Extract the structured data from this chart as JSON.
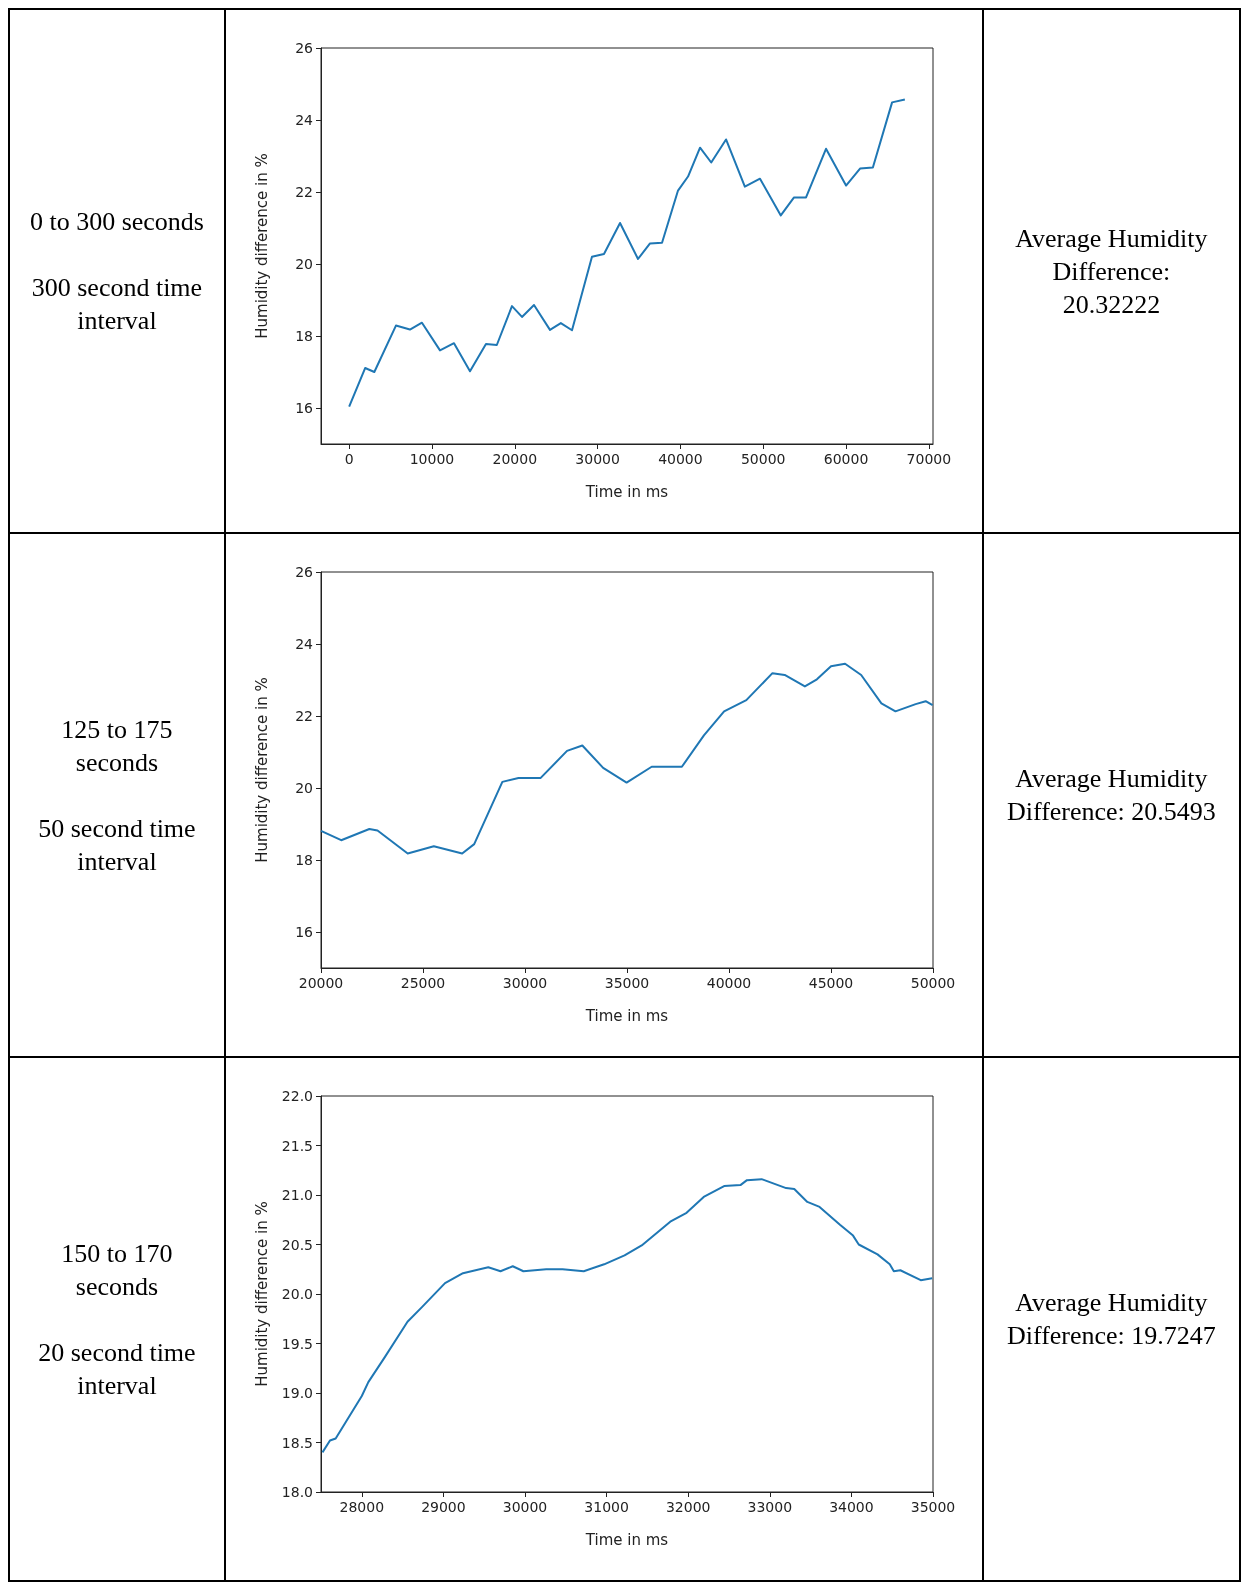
{
  "chart_data": [
    {
      "type": "line",
      "xlabel": "Time in ms",
      "ylabel": "Humidity difference in %",
      "annotations": [
        "0 to 300 seconds",
        "300 second time interval",
        "Average Humidity Difference: 20.32222"
      ],
      "xlim": [
        -3400,
        70500
      ],
      "ylim": [
        15,
        26
      ],
      "xticks": [
        0,
        10000,
        20000,
        30000,
        40000,
        50000,
        60000,
        70000
      ],
      "yticks": [
        16,
        18,
        20,
        22,
        24,
        26
      ],
      "x": [
        0,
        1930,
        3040,
        5650,
        7340,
        8790,
        10970,
        12660,
        14590,
        16520,
        17830,
        19660,
        20870,
        22320,
        24250,
        25560,
        26910,
        29320,
        30770,
        32710,
        34880,
        36330,
        37780,
        39710,
        40920,
        42370,
        43720,
        45510,
        47780,
        49610,
        52120,
        53720,
        55170,
        57580,
        60000,
        61690,
        63240,
        65560,
        67100
      ],
      "series": [
        {
          "color": "#1f77b4",
          "values": [
            16.04,
            17.11,
            17.0,
            18.29,
            18.18,
            18.37,
            17.6,
            17.8,
            17.02,
            17.78,
            17.75,
            18.83,
            18.53,
            18.86,
            18.17,
            18.36,
            18.16,
            20.2,
            20.28,
            21.14,
            20.14,
            20.57,
            20.59,
            22.04,
            22.43,
            23.23,
            22.82,
            23.46,
            22.15,
            22.37,
            21.35,
            21.85,
            21.85,
            23.2,
            22.18,
            22.65,
            22.68,
            24.49,
            24.57
          ]
        }
      ]
    },
    {
      "type": "line",
      "xlabel": "Time in ms",
      "ylabel": "Humidity difference in %",
      "annotations": [
        "125 to 175 seconds",
        "50 second time interval",
        "Average Humidity Difference: 20.5493"
      ],
      "xlim": [
        20000,
        50000
      ],
      "ylim": [
        15,
        26
      ],
      "xticks": [
        20000,
        25000,
        30000,
        35000,
        40000,
        45000,
        50000
      ],
      "yticks": [
        16,
        18,
        20,
        22,
        24,
        26
      ],
      "x": [
        20000,
        20990,
        22370,
        22770,
        24250,
        25530,
        26920,
        27510,
        28890,
        29680,
        30770,
        32060,
        32810,
        33830,
        34980,
        36210,
        37690,
        38770,
        39760,
        40850,
        42130,
        42730,
        43720,
        44310,
        45000,
        45690,
        46480,
        47470,
        48160,
        49150,
        49640,
        49980
      ],
      "series": [
        {
          "color": "#1f77b4",
          "values": [
            18.81,
            18.55,
            18.86,
            18.82,
            18.18,
            18.38,
            18.18,
            18.44,
            20.17,
            20.28,
            20.28,
            21.03,
            21.18,
            20.56,
            20.15,
            20.59,
            20.59,
            21.46,
            22.13,
            22.44,
            23.19,
            23.14,
            22.82,
            23.02,
            23.38,
            23.45,
            23.14,
            22.35,
            22.13,
            22.33,
            22.41,
            22.3
          ]
        }
      ]
    },
    {
      "type": "line",
      "xlabel": "Time in ms",
      "ylabel": "Humidity difference in %",
      "annotations": [
        "150 to 170 seconds",
        "20 second time interval",
        "Average Humidity Difference: 19.7247"
      ],
      "xlim": [
        27500,
        35000
      ],
      "ylim": [
        18,
        22
      ],
      "xticks": [
        28000,
        29000,
        30000,
        31000,
        32000,
        33000,
        34000,
        35000
      ],
      "yticks": [
        {
          "value": 18,
          "label": "18.0"
        },
        {
          "value": 18.5,
          "label": "18.5"
        },
        {
          "value": 19,
          "label": "19.0"
        },
        {
          "value": 19.5,
          "label": "19.5"
        },
        {
          "value": 20,
          "label": "20.0"
        },
        {
          "value": 20.5,
          "label": "20.5"
        },
        {
          "value": 21,
          "label": "21.0"
        },
        {
          "value": 21.5,
          "label": "21.5"
        },
        {
          "value": 22,
          "label": "22.0"
        }
      ],
      "x": [
        27518,
        27610,
        27680,
        28000,
        28080,
        28280,
        28560,
        28740,
        29020,
        29240,
        29550,
        29700,
        29850,
        29980,
        30260,
        30460,
        30720,
        30970,
        31220,
        31430,
        31780,
        31980,
        32190,
        32440,
        32640,
        32720,
        32900,
        33200,
        33300,
        33460,
        33610,
        33860,
        34020,
        34090,
        34320,
        34470,
        34520,
        34600,
        34850,
        34990
      ],
      "series": [
        {
          "color": "#1f77b4",
          "values": [
            18.4,
            18.52,
            18.54,
            18.97,
            19.11,
            19.36,
            19.72,
            19.87,
            20.11,
            20.21,
            20.27,
            20.23,
            20.28,
            20.23,
            20.25,
            20.25,
            20.23,
            20.3,
            20.39,
            20.49,
            20.73,
            20.82,
            20.98,
            21.09,
            21.1,
            21.15,
            21.16,
            21.07,
            21.06,
            20.93,
            20.88,
            20.7,
            20.59,
            20.5,
            20.4,
            20.3,
            20.23,
            20.24,
            20.14,
            20.16
          ]
        }
      ]
    }
  ]
}
